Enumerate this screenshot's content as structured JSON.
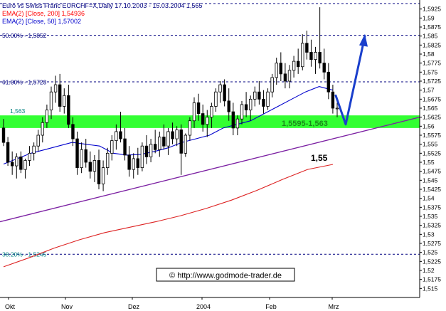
{
  "chart_data": {
    "type": "candlestick",
    "title": "Euro vs Swiss Franc EURCHF=X,Daily 17.10.2003 - 15.03.2004 1,565",
    "legend": [
      {
        "text": "EMA(2) [Close, 200] 1,54936",
        "color": "#ff0000"
      },
      {
        "text": "EMA(2) [Close, 50] 1,57002",
        "color": "#0000cc"
      }
    ],
    "ylim": [
      1.5125,
      1.595
    ],
    "y_ticks": [
      "1,5925",
      "1,59",
      "1,5875",
      "1,585",
      "1,5825",
      "1,58",
      "1,5775",
      "1,575",
      "1,5725",
      "1,57",
      "1,5675",
      "1,565",
      "1,5625",
      "1,56",
      "1,5575",
      "1,555",
      "1,5525",
      "1,55",
      "1,5475",
      "1,545",
      "1,5425",
      "1,54",
      "1,5375",
      "1,535",
      "1,5325",
      "1,53",
      "1,5275",
      "1,525",
      "1,5225",
      "1,52",
      "1,5175",
      "1,515"
    ],
    "x_ticks": [
      "Okt",
      "Nov",
      "Dez",
      "2004",
      "Feb",
      "Mrz"
    ],
    "fib_levels": [
      {
        "label": "50.00% - 1,5852",
        "value": 1.5852
      },
      {
        "label": "61.80% - 1,5723",
        "value": 1.5723
      },
      {
        "label": "38.20% - 1,5245",
        "value": 1.5245
      }
    ],
    "support_zone": {
      "low": 1.5595,
      "high": 1.563,
      "left_label": "1,563",
      "right_label": "1,5595-1,563",
      "color": "#33ff33"
    },
    "trendline": {
      "start": 1.5335,
      "end": 1.5625,
      "color": "#7b1fa2"
    },
    "annotation": {
      "text": "1,55",
      "value": 1.55
    },
    "ema200": {
      "color": "#dd2222",
      "values": [
        1.521,
        1.5235,
        1.5262,
        1.5285,
        1.5305,
        1.532,
        1.5335,
        1.5352,
        1.5372,
        1.5395,
        1.5422,
        1.5452,
        1.548,
        1.5494
      ]
    },
    "ema50": {
      "color": "#0000cc",
      "values": [
        1.5495,
        1.551,
        1.5525,
        1.5535,
        1.5545,
        1.5555,
        1.555,
        1.5545,
        1.5525,
        1.552,
        1.5522,
        1.553,
        1.554,
        1.5555,
        1.5565,
        1.5575,
        1.5595,
        1.5605,
        1.5615,
        1.5635,
        1.5655,
        1.5675,
        1.5695,
        1.571,
        1.57
      ]
    },
    "projection": {
      "color": "#1a3fcc",
      "points": [
        1.5685,
        1.5605,
        1.585
      ]
    },
    "candles": [
      {
        "o": 1.5595,
        "h": 1.562,
        "l": 1.5545,
        "c": 1.5555
      },
      {
        "o": 1.5555,
        "h": 1.557,
        "l": 1.549,
        "c": 1.55
      },
      {
        "o": 1.55,
        "h": 1.553,
        "l": 1.5465,
        "c": 1.549
      },
      {
        "o": 1.549,
        "h": 1.5525,
        "l": 1.5455,
        "c": 1.5515
      },
      {
        "o": 1.5515,
        "h": 1.553,
        "l": 1.547,
        "c": 1.548
      },
      {
        "o": 1.548,
        "h": 1.551,
        "l": 1.5455,
        "c": 1.5505
      },
      {
        "o": 1.5505,
        "h": 1.5545,
        "l": 1.549,
        "c": 1.5525
      },
      {
        "o": 1.5525,
        "h": 1.5555,
        "l": 1.5505,
        "c": 1.5545
      },
      {
        "o": 1.5545,
        "h": 1.559,
        "l": 1.553,
        "c": 1.5575
      },
      {
        "o": 1.5575,
        "h": 1.5625,
        "l": 1.5555,
        "c": 1.561
      },
      {
        "o": 1.561,
        "h": 1.566,
        "l": 1.5595,
        "c": 1.5645
      },
      {
        "o": 1.5645,
        "h": 1.571,
        "l": 1.562,
        "c": 1.5695
      },
      {
        "o": 1.5695,
        "h": 1.574,
        "l": 1.5665,
        "c": 1.5715
      },
      {
        "o": 1.5715,
        "h": 1.5745,
        "l": 1.564,
        "c": 1.5655
      },
      {
        "o": 1.5655,
        "h": 1.5705,
        "l": 1.5635,
        "c": 1.5685
      },
      {
        "o": 1.5685,
        "h": 1.5715,
        "l": 1.5595,
        "c": 1.5605
      },
      {
        "o": 1.5605,
        "h": 1.5625,
        "l": 1.5545,
        "c": 1.5565
      },
      {
        "o": 1.5565,
        "h": 1.5585,
        "l": 1.5465,
        "c": 1.5485
      },
      {
        "o": 1.5485,
        "h": 1.5555,
        "l": 1.547,
        "c": 1.5535
      },
      {
        "o": 1.5535,
        "h": 1.5565,
        "l": 1.5485,
        "c": 1.55
      },
      {
        "o": 1.55,
        "h": 1.553,
        "l": 1.5455,
        "c": 1.5475
      },
      {
        "o": 1.5475,
        "h": 1.552,
        "l": 1.5445,
        "c": 1.5505
      },
      {
        "o": 1.5505,
        "h": 1.5535,
        "l": 1.5425,
        "c": 1.544
      },
      {
        "o": 1.544,
        "h": 1.5505,
        "l": 1.542,
        "c": 1.5485
      },
      {
        "o": 1.5485,
        "h": 1.554,
        "l": 1.5465,
        "c": 1.5525
      },
      {
        "o": 1.5525,
        "h": 1.5575,
        "l": 1.5505,
        "c": 1.556
      },
      {
        "o": 1.556,
        "h": 1.5605,
        "l": 1.5535,
        "c": 1.5585
      },
      {
        "o": 1.5585,
        "h": 1.564,
        "l": 1.5555,
        "c": 1.5565
      },
      {
        "o": 1.5565,
        "h": 1.5595,
        "l": 1.5505,
        "c": 1.552
      },
      {
        "o": 1.552,
        "h": 1.5545,
        "l": 1.546,
        "c": 1.548
      },
      {
        "o": 1.548,
        "h": 1.5525,
        "l": 1.5455,
        "c": 1.551
      },
      {
        "o": 1.551,
        "h": 1.554,
        "l": 1.5465,
        "c": 1.5485
      },
      {
        "o": 1.5485,
        "h": 1.5555,
        "l": 1.5475,
        "c": 1.5545
      },
      {
        "o": 1.5545,
        "h": 1.5575,
        "l": 1.5495,
        "c": 1.5515
      },
      {
        "o": 1.5515,
        "h": 1.5565,
        "l": 1.55,
        "c": 1.555
      },
      {
        "o": 1.555,
        "h": 1.559,
        "l": 1.5525,
        "c": 1.5535
      },
      {
        "o": 1.5535,
        "h": 1.5585,
        "l": 1.5515,
        "c": 1.557
      },
      {
        "o": 1.557,
        "h": 1.5605,
        "l": 1.5535,
        "c": 1.5545
      },
      {
        "o": 1.5545,
        "h": 1.5595,
        "l": 1.552,
        "c": 1.5585
      },
      {
        "o": 1.5585,
        "h": 1.561,
        "l": 1.555,
        "c": 1.5565
      },
      {
        "o": 1.5565,
        "h": 1.56,
        "l": 1.5545,
        "c": 1.559
      },
      {
        "o": 1.559,
        "h": 1.5605,
        "l": 1.5465,
        "c": 1.5525
      },
      {
        "o": 1.5525,
        "h": 1.558,
        "l": 1.5515,
        "c": 1.5575
      },
      {
        "o": 1.5575,
        "h": 1.5625,
        "l": 1.556,
        "c": 1.5615
      },
      {
        "o": 1.5615,
        "h": 1.568,
        "l": 1.5595,
        "c": 1.5665
      },
      {
        "o": 1.5665,
        "h": 1.569,
        "l": 1.5615,
        "c": 1.5635
      },
      {
        "o": 1.5635,
        "h": 1.566,
        "l": 1.5585,
        "c": 1.5605
      },
      {
        "o": 1.5605,
        "h": 1.5645,
        "l": 1.557,
        "c": 1.5625
      },
      {
        "o": 1.5625,
        "h": 1.5665,
        "l": 1.5595,
        "c": 1.5655
      },
      {
        "o": 1.5655,
        "h": 1.5705,
        "l": 1.564,
        "c": 1.5695
      },
      {
        "o": 1.5695,
        "h": 1.5725,
        "l": 1.5665,
        "c": 1.5715
      },
      {
        "o": 1.5715,
        "h": 1.573,
        "l": 1.5655,
        "c": 1.567
      },
      {
        "o": 1.567,
        "h": 1.5705,
        "l": 1.5615,
        "c": 1.564
      },
      {
        "o": 1.564,
        "h": 1.5665,
        "l": 1.5575,
        "c": 1.5595
      },
      {
        "o": 1.5595,
        "h": 1.563,
        "l": 1.5575,
        "c": 1.562
      },
      {
        "o": 1.562,
        "h": 1.567,
        "l": 1.5605,
        "c": 1.566
      },
      {
        "o": 1.566,
        "h": 1.5695,
        "l": 1.5625,
        "c": 1.5645
      },
      {
        "o": 1.5645,
        "h": 1.5685,
        "l": 1.5615,
        "c": 1.5675
      },
      {
        "o": 1.5675,
        "h": 1.571,
        "l": 1.5655,
        "c": 1.5695
      },
      {
        "o": 1.5695,
        "h": 1.5725,
        "l": 1.566,
        "c": 1.5675
      },
      {
        "o": 1.5675,
        "h": 1.57,
        "l": 1.5635,
        "c": 1.5655
      },
      {
        "o": 1.5655,
        "h": 1.5705,
        "l": 1.5645,
        "c": 1.5695
      },
      {
        "o": 1.5695,
        "h": 1.5745,
        "l": 1.568,
        "c": 1.5735
      },
      {
        "o": 1.5735,
        "h": 1.579,
        "l": 1.5715,
        "c": 1.5775
      },
      {
        "o": 1.5775,
        "h": 1.5805,
        "l": 1.5725,
        "c": 1.5745
      },
      {
        "o": 1.5745,
        "h": 1.5775,
        "l": 1.5705,
        "c": 1.5725
      },
      {
        "o": 1.5725,
        "h": 1.577,
        "l": 1.5705,
        "c": 1.5755
      },
      {
        "o": 1.5755,
        "h": 1.5795,
        "l": 1.5735,
        "c": 1.578
      },
      {
        "o": 1.578,
        "h": 1.5815,
        "l": 1.5745,
        "c": 1.5765
      },
      {
        "o": 1.5765,
        "h": 1.5855,
        "l": 1.5755,
        "c": 1.583
      },
      {
        "o": 1.583,
        "h": 1.5865,
        "l": 1.5785,
        "c": 1.5805
      },
      {
        "o": 1.5805,
        "h": 1.584,
        "l": 1.5765,
        "c": 1.5785
      },
      {
        "o": 1.5785,
        "h": 1.582,
        "l": 1.5745,
        "c": 1.5805
      },
      {
        "o": 1.5805,
        "h": 1.593,
        "l": 1.576,
        "c": 1.5775
      },
      {
        "o": 1.5775,
        "h": 1.5815,
        "l": 1.573,
        "c": 1.575
      },
      {
        "o": 1.575,
        "h": 1.5775,
        "l": 1.5675,
        "c": 1.5695
      },
      {
        "o": 1.5695,
        "h": 1.5715,
        "l": 1.5635,
        "c": 1.565
      },
      {
        "o": 1.565,
        "h": 1.5665,
        "l": 1.5625,
        "c": 1.565
      }
    ]
  },
  "watermark": "© http://www.godmode-trader.de"
}
